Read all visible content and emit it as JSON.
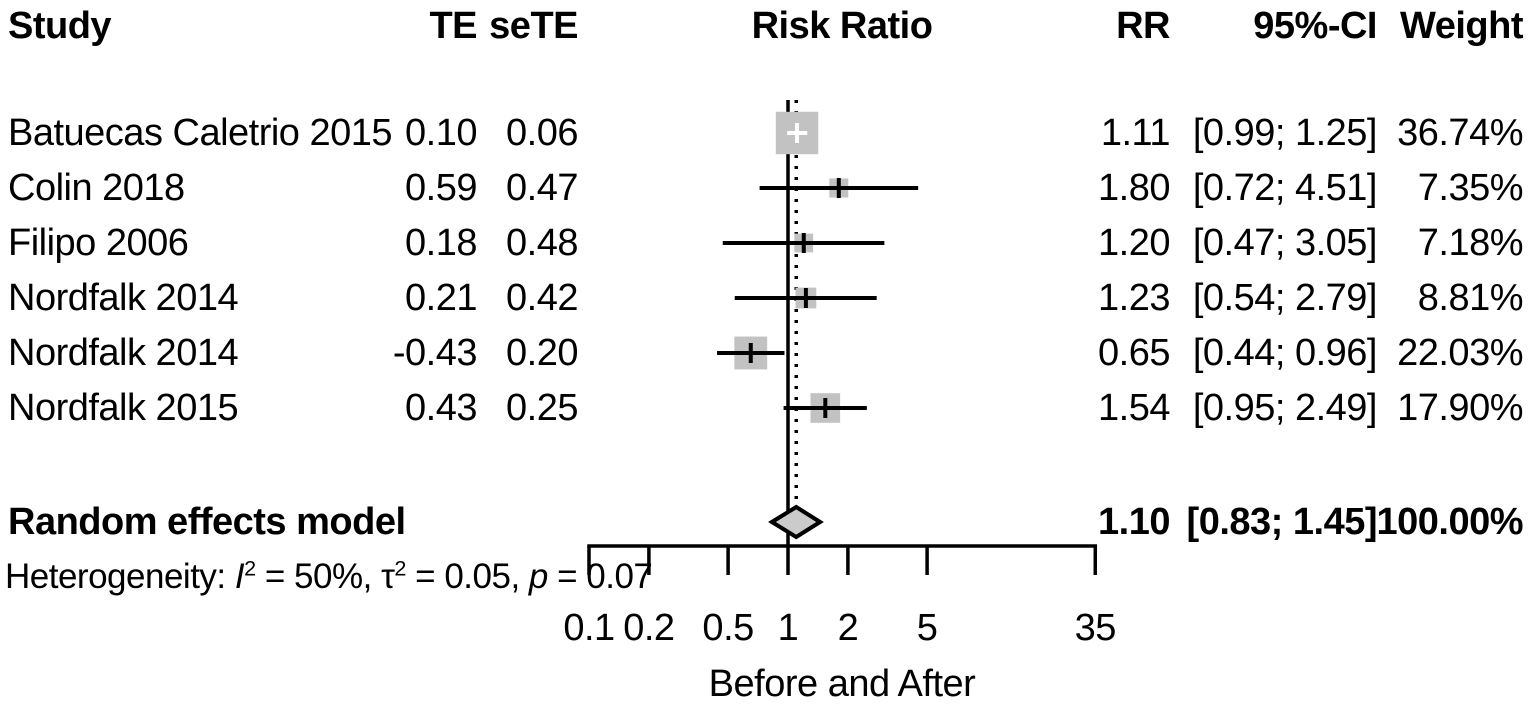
{
  "header": {
    "study": "Study",
    "te": "TE",
    "sete": "seTE",
    "risk_ratio": "Risk Ratio",
    "rr": "RR",
    "ci": "95%-CI",
    "weight": "Weight"
  },
  "chart_data": {
    "type": "forest",
    "x_scale": "log",
    "title": "",
    "xlabel": "Before and After",
    "axis_ticks": [
      "0.1",
      "0.2",
      "0.5",
      "1",
      "2",
      "5",
      "35"
    ],
    "xlim": [
      0.1,
      35
    ],
    "reference_line": 1.0,
    "overall_dotted_line": 1.1,
    "studies": [
      {
        "study": "Batuecas Caletrio 2015",
        "te": "0.10",
        "sete": "0.06",
        "rr": 1.11,
        "ci_low": 0.99,
        "ci_high": 1.25,
        "rr_text": "1.11",
        "ci_text": "[0.99; 1.25]",
        "weight": 36.74,
        "weight_text": "36.74%"
      },
      {
        "study": "Colin 2018",
        "te": "0.59",
        "sete": "0.47",
        "rr": 1.8,
        "ci_low": 0.72,
        "ci_high": 4.51,
        "rr_text": "1.80",
        "ci_text": "[0.72; 4.51]",
        "weight": 7.35,
        "weight_text": "7.35%"
      },
      {
        "study": "Filipo 2006",
        "te": "0.18",
        "sete": "0.48",
        "rr": 1.2,
        "ci_low": 0.47,
        "ci_high": 3.05,
        "rr_text": "1.20",
        "ci_text": "[0.47; 3.05]",
        "weight": 7.18,
        "weight_text": "7.18%"
      },
      {
        "study": "Nordfalk 2014",
        "te": "0.21",
        "sete": "0.42",
        "rr": 1.23,
        "ci_low": 0.54,
        "ci_high": 2.79,
        "rr_text": "1.23",
        "ci_text": "[0.54; 2.79]",
        "weight": 8.81,
        "weight_text": "8.81%"
      },
      {
        "study": "Nordfalk 2014",
        "te": "-0.43",
        "sete": "0.20",
        "rr": 0.65,
        "ci_low": 0.44,
        "ci_high": 0.96,
        "rr_text": "0.65",
        "ci_text": "[0.44; 0.96]",
        "weight": 22.03,
        "weight_text": "22.03%"
      },
      {
        "study": "Nordfalk 2015",
        "te": "0.43",
        "sete": "0.25",
        "rr": 1.54,
        "ci_low": 0.95,
        "ci_high": 2.49,
        "rr_text": "1.54",
        "ci_text": "[0.95; 2.49]",
        "weight": 17.9,
        "weight_text": "17.90%"
      }
    ],
    "overall": {
      "label": "Random effects model",
      "rr": 1.1,
      "ci_low": 0.83,
      "ci_high": 1.45,
      "rr_text": "1.10",
      "ci_text": "[0.83; 1.45]",
      "weight_text": "100.00%"
    },
    "heterogeneity_segments": [
      {
        "t": "Heterogeneity: "
      },
      {
        "t": "I",
        "italic": true
      },
      {
        "t": "2",
        "sup": true
      },
      {
        "t": " = 50%, "
      },
      {
        "t": "τ"
      },
      {
        "t": "2",
        "sup": true
      },
      {
        "t": " = 0.05, "
      },
      {
        "t": "p",
        "italic": true
      },
      {
        "t": " = 0.07"
      }
    ]
  },
  "colors": {
    "square": "#c2c2c2",
    "diamond_fill": "#cbcbcb",
    "line": "#000000",
    "inner_marker": "#ffffff",
    "text": "#000000"
  }
}
